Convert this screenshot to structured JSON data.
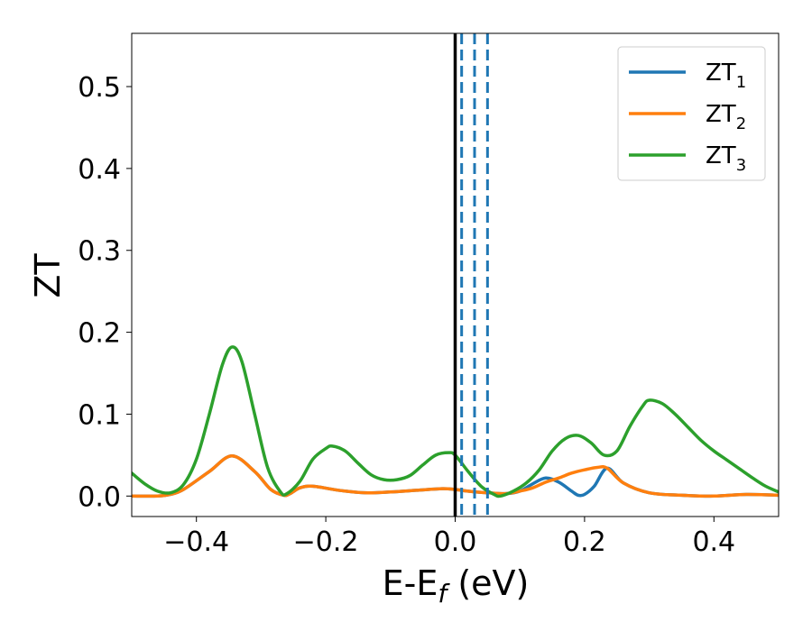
{
  "chart_data": {
    "type": "line",
    "xlabel": "E-E",
    "xlabel_sub": "f",
    "xlabel_unit": " (eV)",
    "ylabel": "ZT",
    "xlim": [
      -0.5,
      0.5
    ],
    "ylim": [
      -0.025,
      0.565
    ],
    "xticks": [
      -0.4,
      -0.2,
      0.0,
      0.2,
      0.4
    ],
    "xtick_labels": [
      "−0.4",
      "−0.2",
      "0.0",
      "0.2",
      "0.4"
    ],
    "yticks": [
      0.0,
      0.1,
      0.2,
      0.3,
      0.4,
      0.5
    ],
    "ytick_labels": [
      "0.0",
      "0.1",
      "0.2",
      "0.3",
      "0.4",
      "0.5"
    ],
    "grid": false,
    "legend_position": "top-right",
    "vertical_lines": [
      {
        "x": 0.0,
        "color": "#000000",
        "style": "solid"
      },
      {
        "x": 0.01,
        "color": "#1f77b4",
        "style": "dashed"
      },
      {
        "x": 0.03,
        "color": "#1f77b4",
        "style": "dashed"
      },
      {
        "x": 0.05,
        "color": "#1f77b4",
        "style": "dashed"
      }
    ],
    "series": [
      {
        "name": "ZT",
        "name_sub": "1",
        "color": "#1f77b4",
        "x": [
          -0.5,
          -0.46,
          -0.44,
          -0.42,
          -0.38,
          -0.345,
          -0.31,
          -0.285,
          -0.265,
          -0.255,
          -0.24,
          -0.22,
          -0.18,
          -0.14,
          -0.1,
          -0.06,
          -0.02,
          0.0,
          0.02,
          0.05,
          0.08,
          0.1,
          0.12,
          0.14,
          0.16,
          0.18,
          0.19,
          0.2,
          0.215,
          0.235,
          0.26,
          0.3,
          0.35,
          0.4,
          0.45,
          0.5
        ],
        "y": [
          0.0,
          0.0,
          0.002,
          0.008,
          0.03,
          0.049,
          0.03,
          0.008,
          0.001,
          0.003,
          0.01,
          0.012,
          0.007,
          0.004,
          0.005,
          0.007,
          0.009,
          0.008,
          0.006,
          0.004,
          0.003,
          0.006,
          0.015,
          0.022,
          0.017,
          0.006,
          0.001,
          0.002,
          0.012,
          0.034,
          0.016,
          0.004,
          0.001,
          0.0,
          0.002,
          0.001
        ]
      },
      {
        "name": "ZT",
        "name_sub": "2",
        "color": "#ff7f0e",
        "x": [
          -0.5,
          -0.46,
          -0.44,
          -0.42,
          -0.38,
          -0.345,
          -0.31,
          -0.285,
          -0.265,
          -0.255,
          -0.24,
          -0.22,
          -0.18,
          -0.14,
          -0.1,
          -0.06,
          -0.02,
          0.0,
          0.02,
          0.05,
          0.08,
          0.1,
          0.12,
          0.14,
          0.16,
          0.18,
          0.2,
          0.22,
          0.235,
          0.26,
          0.3,
          0.35,
          0.4,
          0.45,
          0.5
        ],
        "y": [
          0.0,
          0.0,
          0.002,
          0.008,
          0.03,
          0.049,
          0.03,
          0.008,
          0.001,
          0.003,
          0.01,
          0.012,
          0.007,
          0.004,
          0.005,
          0.007,
          0.009,
          0.008,
          0.006,
          0.004,
          0.003,
          0.006,
          0.01,
          0.017,
          0.022,
          0.028,
          0.032,
          0.035,
          0.034,
          0.016,
          0.004,
          0.001,
          0.0,
          0.002,
          0.001
        ]
      },
      {
        "name": "ZT",
        "name_sub": "3",
        "color": "#2ca02c",
        "x": [
          -0.5,
          -0.48,
          -0.46,
          -0.44,
          -0.42,
          -0.4,
          -0.38,
          -0.36,
          -0.345,
          -0.33,
          -0.31,
          -0.29,
          -0.27,
          -0.26,
          -0.24,
          -0.22,
          -0.2,
          -0.19,
          -0.17,
          -0.15,
          -0.13,
          -0.11,
          -0.09,
          -0.07,
          -0.05,
          -0.03,
          -0.01,
          0.0,
          0.02,
          0.04,
          0.06,
          0.07,
          0.09,
          0.11,
          0.13,
          0.15,
          0.17,
          0.19,
          0.21,
          0.23,
          0.25,
          0.27,
          0.29,
          0.3,
          0.32,
          0.34,
          0.36,
          0.38,
          0.4,
          0.42,
          0.44,
          0.46,
          0.48,
          0.5
        ],
        "y": [
          0.028,
          0.015,
          0.006,
          0.004,
          0.014,
          0.045,
          0.1,
          0.16,
          0.182,
          0.165,
          0.1,
          0.035,
          0.005,
          0.003,
          0.018,
          0.045,
          0.058,
          0.061,
          0.055,
          0.04,
          0.026,
          0.02,
          0.02,
          0.025,
          0.038,
          0.05,
          0.053,
          0.05,
          0.03,
          0.012,
          0.002,
          0.0,
          0.006,
          0.016,
          0.032,
          0.055,
          0.07,
          0.074,
          0.065,
          0.05,
          0.055,
          0.085,
          0.11,
          0.117,
          0.113,
          0.1,
          0.084,
          0.068,
          0.055,
          0.044,
          0.033,
          0.022,
          0.012,
          0.005
        ]
      }
    ]
  }
}
